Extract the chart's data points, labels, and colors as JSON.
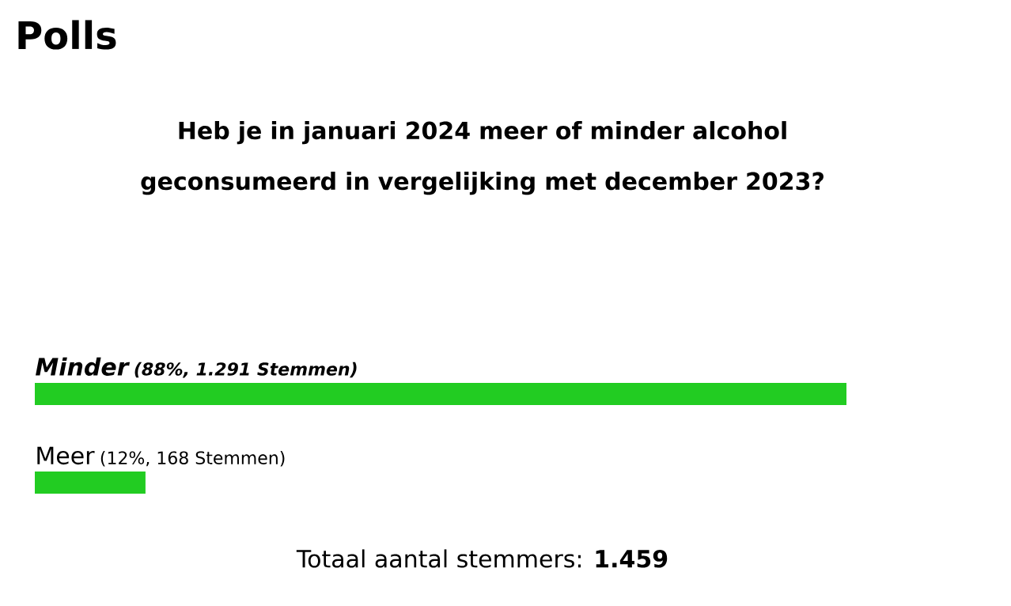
{
  "chart_data": {
    "type": "bar",
    "orientation": "horizontal",
    "title": "Polls",
    "subtitle": "Heb je in januari 2024 meer of minder alcohol geconsumeerd in vergelijking met december 2023?",
    "categories": [
      "Minder",
      "Meer"
    ],
    "values": [
      88,
      12
    ],
    "value_labels": [
      "(88%, 1.291 Stemmen)",
      "(12%, 168 Stemmen)"
    ],
    "color": "#22cc22",
    "annotations": [
      "Totaal aantal stemmers: **1.459**"
    ]
  }
}
